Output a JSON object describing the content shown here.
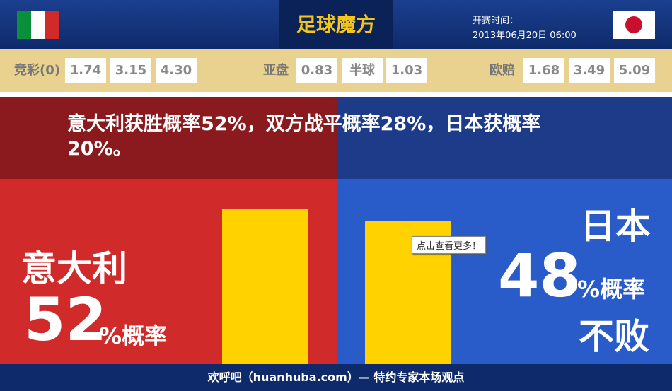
{
  "header": {
    "logo": "足球魔方",
    "time_label": "开赛时间：",
    "time": "2013年06月20日 06:00"
  },
  "odds": {
    "jingcai": {
      "label": "竞彩(0)",
      "values": [
        "1.74",
        "3.15",
        "4.30"
      ]
    },
    "yapan": {
      "label": "亚盘",
      "values": [
        "0.83",
        "半球",
        "1.03"
      ]
    },
    "oupei": {
      "label": "欧赔",
      "values": [
        "1.68",
        "3.49",
        "5.09"
      ]
    }
  },
  "headline": "意大利获胜概率52%，双方战平概率28%，日本获概率20%。",
  "left": {
    "team": "意大利",
    "value": 52,
    "unit": "%概率"
  },
  "right": {
    "team": "日本",
    "value": 48,
    "unit": "%概率",
    "suffix": "不败"
  },
  "tooltip": "点击查看更多！",
  "footer": "欢呼吧（huanhuba.com）— 特约专家本场观点"
}
